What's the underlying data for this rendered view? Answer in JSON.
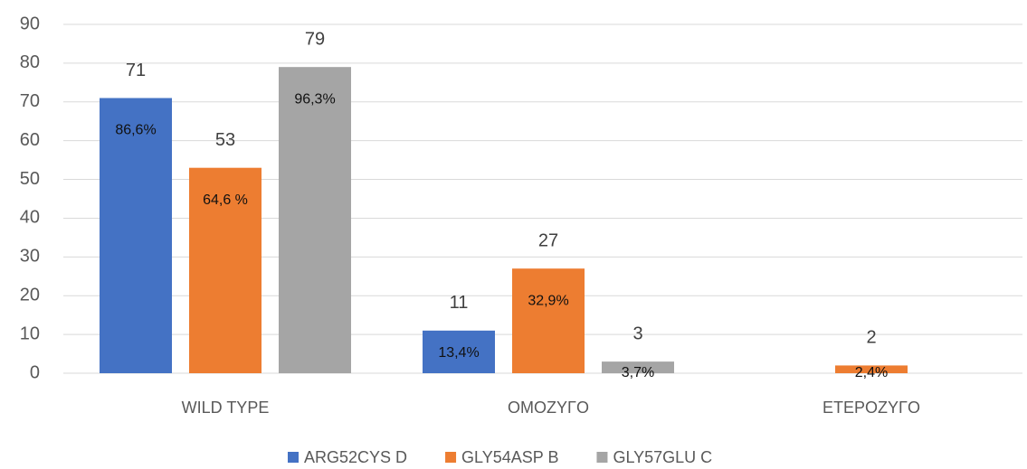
{
  "chart_data": {
    "type": "bar",
    "categories": [
      "WILD TYPE",
      "ΟΜΟΖΥΓΟ",
      "ΕΤΕΡΟΖΥΓΟ"
    ],
    "series": [
      {
        "name": "ARG52CYS D",
        "color": "#4472c4",
        "values": [
          71,
          11,
          null
        ],
        "shares": [
          86.6,
          13.4,
          null
        ],
        "share_labels": [
          "86,6%",
          "13,4%",
          null
        ]
      },
      {
        "name": "GLY54ASP B",
        "color": "#ed7d31",
        "values": [
          53,
          27,
          2
        ],
        "shares": [
          64.6,
          32.9,
          2.4
        ],
        "share_labels": [
          "64,6 %",
          "32,9%",
          "2,4%"
        ]
      },
      {
        "name": "GLY57GLU C",
        "color": "#a5a5a5",
        "values": [
          79,
          3,
          null
        ],
        "shares": [
          96.3,
          3.7,
          null
        ],
        "share_labels": [
          "96,3%",
          "3,7%",
          null
        ]
      }
    ],
    "ylim": [
      0,
      90
    ],
    "yticks": [
      0,
      10,
      20,
      30,
      40,
      50,
      60,
      70,
      80,
      90
    ],
    "grid": true,
    "legend": "bottom"
  }
}
